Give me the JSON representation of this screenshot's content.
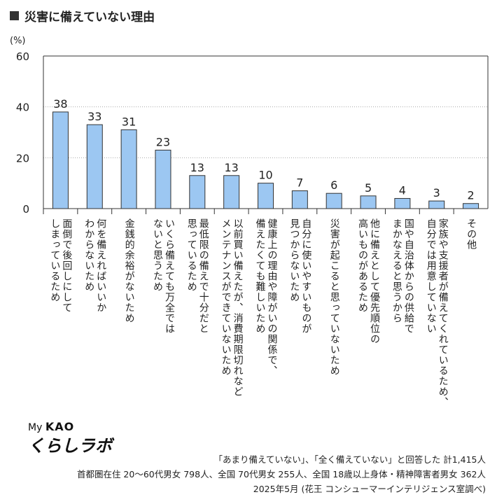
{
  "title": "災害に備えていない理由",
  "chart_data": {
    "type": "bar",
    "title": "災害に備えていない理由",
    "ylabel": "(%)",
    "ylim": [
      0,
      60
    ],
    "yticks": [
      0,
      20,
      40,
      60
    ],
    "grid": true,
    "categories": [
      "面倒で後回しにして\nしまっているため",
      "何を備えればいいか\nわからないため",
      "金銭的余裕がないため",
      "いくら備えても万全では\nないと思うため",
      "最低限の備えで十分だと\n思っているため",
      "以前買い備えたが、消費期限切れなど\nメンテナンスができていないため",
      "健康上の理由や障がいの関係で、\n備えたくても難しいため",
      "自分に使いやすいものが\n見つからないため",
      "災害が起こると思っていないため",
      "他に備えとして優先順位の\n高いものがあるため",
      "国や自治体からの供給で\nまかなえると思うから",
      "家族や支援者が備えてくれているため、\n自分では用意していない",
      "その他"
    ],
    "values": [
      38,
      33,
      31,
      23,
      13,
      13,
      10,
      7,
      6,
      5,
      4,
      3,
      2
    ],
    "bar_color": "#9cc7f2",
    "bar_edge": "#333333"
  },
  "logo": {
    "my": "My",
    "kao": "KAO",
    "labo": "くらしラボ"
  },
  "notes": [
    "「あまり備えていない」、「全く備えていない」と回答した 計1,415人",
    "首都圏在住 20～60代男女 798人、全国 70代男女 255人、全国 18歳以上身体・精神障害者男女 362人",
    "2025年5月 (花王 コンシューマーインテリジェンス室調べ)"
  ]
}
